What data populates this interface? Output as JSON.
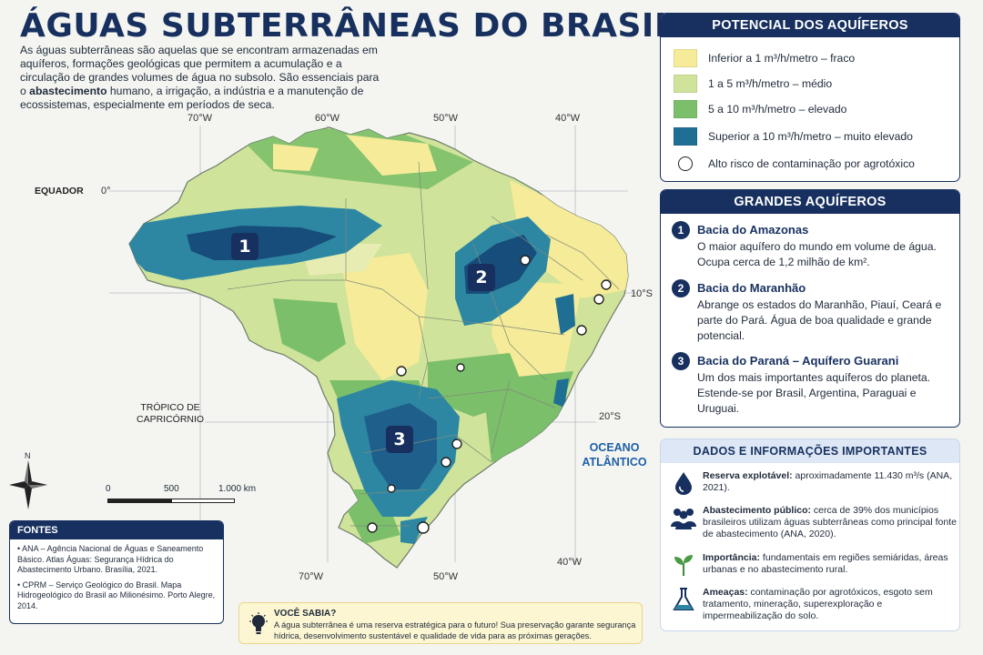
{
  "title": "ÁGUAS SUBTERRÂNEAS DO BRASIL",
  "intro": {
    "before": "As águas subterrâneas são aquelas que se encontram armazenadas em aquíferos, formações geológicas que permitem a acumulação e a circulação de grandes volumes de água no subsolo. São essenciais para o ",
    "bold": "abastecimento",
    "after": " humano, a irrigação, a indústria e a manutenção de ecossistemas, especialmente em períodos de seca."
  },
  "map": {
    "longitudes": [
      "70°W",
      "60°W",
      "50°W",
      "40°W"
    ],
    "latitudes": {
      "equator_value": "0°",
      "lat10": "10°S",
      "lat20": "20°S"
    },
    "equator_label": "EQUADOR",
    "tropic_label": "TRÓPICO DE CAPRICÓRNIO",
    "ocean_label": "OCEANO ATLÂNTICO",
    "markers": [
      "1",
      "2",
      "3"
    ],
    "scale": {
      "zero": "0",
      "mid": "500",
      "end": "1.000 km"
    },
    "north": "N",
    "contamination_points": 11
  },
  "legend": {
    "title": "POTENCIAL DOS AQUÍFEROS",
    "items": [
      {
        "label": "Inferior a 1 m³/h/metro – fraco",
        "color": "#f6eb98"
      },
      {
        "label": "1 a 5 m³/h/metro – médio",
        "color": "#cfe39a"
      },
      {
        "label": "5 a 10 m³/h/metro – elevado",
        "color": "#7cbf6a"
      },
      {
        "label": "Superior a 10 m³/h/metro – muito elevado",
        "color": "#1f6f94"
      }
    ],
    "risk_label": "Alto risco de contaminação por agrotóxico"
  },
  "aquifers": {
    "title": "GRANDES AQUÍFEROS",
    "items": [
      {
        "num": "1",
        "name": "Bacia do Amazonas",
        "desc": "O maior aquífero do mundo em volume de água. Ocupa cerca de 1,2 milhão de km²."
      },
      {
        "num": "2",
        "name": "Bacia do Maranhão",
        "desc": "Abrange os estados do Maranhão, Piauí, Ceará e parte do Pará. Água de boa qualidade e grande potencial."
      },
      {
        "num": "3",
        "name": "Bacia do Paraná – Aquífero Guarani",
        "desc": "Um dos mais importantes aquíferos do planeta. Estende-se por Brasil, Argentina, Paraguai e Uruguai."
      }
    ]
  },
  "info": {
    "title": "DADOS E INFORMAÇÕES IMPORTANTES",
    "items": [
      {
        "label": "Reserva explotável:",
        "text": " aproximadamente 11.430 m³/s (ANA, 2021).",
        "icon": "water-drop-icon"
      },
      {
        "label": "Abastecimento público:",
        "text": " cerca de 39% dos municípios brasileiros utilizam águas subterrâneas como principal fonte de abastecimento (ANA, 2020).",
        "icon": "people-icon"
      },
      {
        "label": "Importância:",
        "text": " fundamentais em regiões semiáridas, áreas urbanas e no abastecimento rural.",
        "icon": "plant-icon"
      },
      {
        "label": "Ameaças:",
        "text": " contaminação por agrotóxicos, esgoto sem tratamento, mineração, superexploração e impermeabilização do solo.",
        "icon": "flask-icon"
      }
    ]
  },
  "fontes": {
    "title": "FONTES",
    "items": [
      "• ANA – Agência Nacional de Águas e Saneamento Básico. Atlas Águas: Segurança Hídrica do Abastecimento Urbano. Brasília, 2021.",
      "• CPRM – Serviço Geológico do Brasil. Mapa Hidrogeológico do Brasil ao Milionésimo. Porto Alegre, 2014."
    ]
  },
  "voce_sabia": {
    "title": "VOCÊ SABIA?",
    "text": "A água subterrânea é uma reserva estratégica para o futuro! Sua preservação garante segurança hídrica, desenvolvimento sustentável e qualidade de vida para as próximas gerações.",
    "icon": "lightbulb-icon"
  },
  "colors": {
    "navy": "#17305f",
    "ocean_text": "#1d5fa8"
  }
}
